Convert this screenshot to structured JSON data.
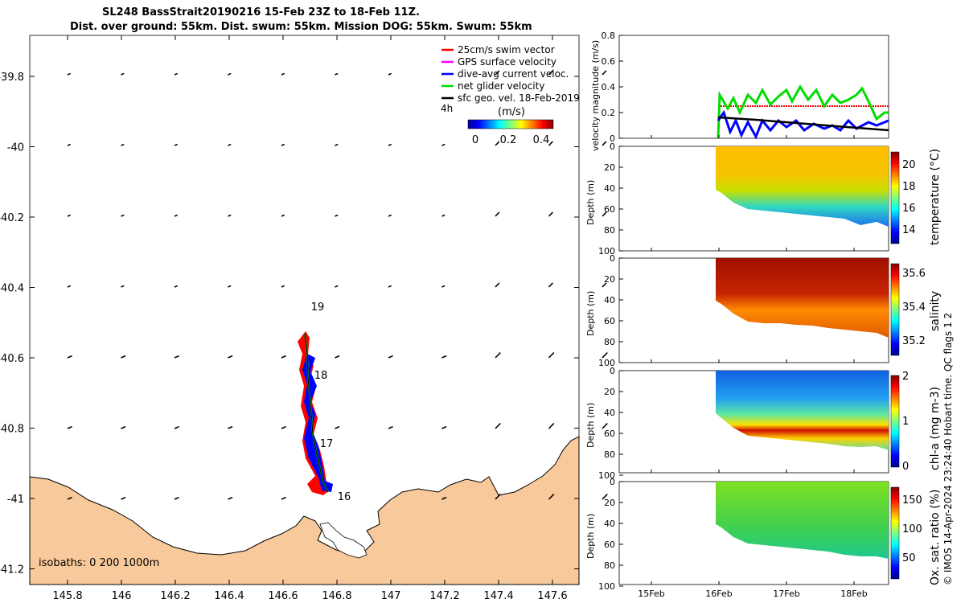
{
  "title": {
    "line1": "SL248 BassStrait20190216 15-Feb 23Z to 18-Feb 11Z.",
    "line2": "Dist. over ground: 55km. Dist. swum: 55km. Mission DOG: 55km. Swum: 55km"
  },
  "map": {
    "legend": [
      {
        "label": "25cm/s swim vector",
        "color": "#ff0000"
      },
      {
        "label": "GPS surface velocity",
        "color": "#ff00ff"
      },
      {
        "label": "dive-avg current veloc.",
        "color": "#0000ff"
      },
      {
        "label": "net glider velocity",
        "color": "#00dd00"
      },
      {
        "label": "sfc geo. vel. 18-Feb-2019",
        "color": "#000000"
      }
    ],
    "legend_extra": "4h",
    "colorbar_title": "(m/s)",
    "colorbar_ticks": [
      "0",
      "0.2",
      "0.4"
    ],
    "isobaths_label": "isobaths: 0   200  1000m",
    "xticks": [
      "145.8",
      "146",
      "146.2",
      "146.4",
      "146.6",
      "146.8",
      "147",
      "147.2",
      "147.4",
      "147.6"
    ],
    "yticks": [
      "-39.8",
      "-40",
      "-40.2",
      "-40.4",
      "-40.6",
      "-40.8",
      "-41",
      "-41.2"
    ],
    "day_labels": [
      "19",
      "18",
      "17",
      "16"
    ],
    "land_color": "#f8c99a"
  },
  "side_panels": {
    "xticks": [
      "15Feb",
      "16Feb",
      "17Feb",
      "18Feb"
    ],
    "depth_label": "Depth (m)",
    "depth_ticks": [
      "0",
      "20",
      "40",
      "60",
      "80",
      "100"
    ],
    "velocity": {
      "ylabel": "velocity magnitude (m/s)",
      "yticks": [
        "0",
        "0.2",
        "0.4",
        "0.6",
        "0.8"
      ]
    },
    "temperature": {
      "label": "temperature (°C)",
      "ticks": [
        "20",
        "18",
        "16",
        "14"
      ]
    },
    "salinity": {
      "label": "salinity",
      "ticks": [
        "35.6",
        "35.4",
        "35.2"
      ]
    },
    "chla": {
      "label": "chl-a (mg m-3)",
      "ticks": [
        "2",
        "1",
        "0"
      ]
    },
    "oxygen": {
      "label": "Ox. sat. ratio (%)",
      "ticks": [
        "150",
        "100",
        "50"
      ]
    }
  },
  "footer_vertical": "© IMOS 14-Apr-2024 23:24:40 Hobart time. QC flags 1  2"
}
